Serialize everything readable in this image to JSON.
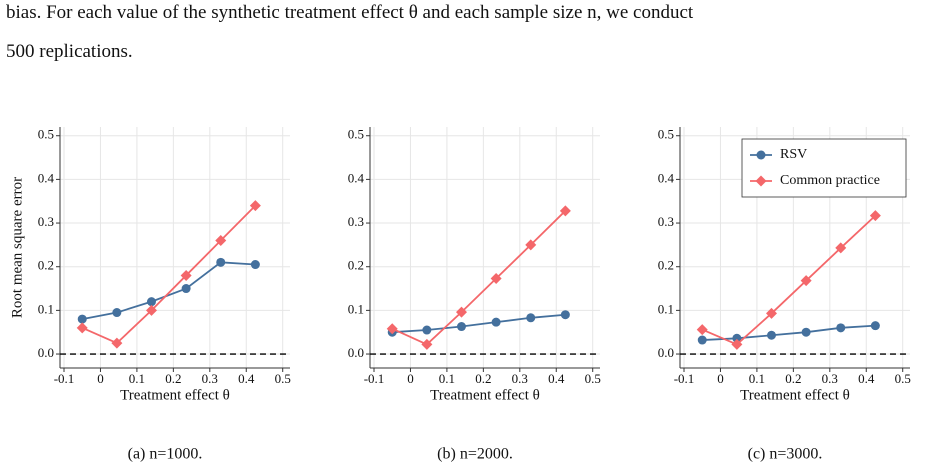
{
  "text": {
    "lines": [
      "bias. For each value of the synthetic treatment effect θ and each sample size n, we conduct",
      "500 replications."
    ]
  },
  "chart_data": [
    {
      "type": "line",
      "caption": "(a) n=1000.",
      "xlabel": "Treatment effect θ",
      "ylabel": "Root mean square error",
      "x": [
        -0.05,
        0.045,
        0.14,
        0.235,
        0.33,
        0.425
      ],
      "series": [
        {
          "color": "#44709d",
          "marker": "circle",
          "values": [
            0.08,
            0.095,
            0.12,
            0.15,
            0.21,
            0.205
          ]
        },
        {
          "color": "#f4676a",
          "marker": "diamond",
          "values": [
            0.06,
            0.025,
            0.1,
            0.18,
            0.26,
            0.34
          ]
        }
      ],
      "xlim": [
        -0.111,
        0.52
      ],
      "ylim": [
        -0.032,
        0.52
      ],
      "xticks": [
        -0.1,
        0,
        0.1,
        0.2,
        0.3,
        0.4,
        0.5
      ],
      "yticks": [
        {
          "value": 0,
          "label": "0.0"
        },
        0.1,
        0.2,
        0.3,
        0.4,
        0.5
      ],
      "hline": 0,
      "grid": true
    },
    {
      "type": "line",
      "caption": "(b) n=2000.",
      "xlabel": "Treatment effect θ",
      "x": [
        -0.05,
        0.045,
        0.14,
        0.235,
        0.33,
        0.425
      ],
      "series": [
        {
          "color": "#44709d",
          "marker": "circle",
          "values": [
            0.05,
            0.055,
            0.063,
            0.073,
            0.083,
            0.09
          ]
        },
        {
          "color": "#f4676a",
          "marker": "diamond",
          "values": [
            0.058,
            0.022,
            0.096,
            0.173,
            0.25,
            0.328
          ]
        }
      ],
      "xlim": [
        -0.111,
        0.52
      ],
      "ylim": [
        -0.032,
        0.52
      ],
      "xticks": [
        -0.1,
        0,
        0.1,
        0.2,
        0.3,
        0.4,
        0.5
      ],
      "yticks": [
        {
          "value": 0,
          "label": "0.0"
        },
        0.1,
        0.2,
        0.3,
        0.4,
        0.5
      ],
      "hline": 0,
      "grid": true
    },
    {
      "type": "line",
      "caption": "(c) n=3000.",
      "xlabel": "Treatment effect θ",
      "x": [
        -0.05,
        0.045,
        0.14,
        0.235,
        0.33,
        0.425
      ],
      "series": [
        {
          "name": "RSV",
          "color": "#44709d",
          "marker": "circle",
          "values": [
            0.032,
            0.036,
            0.043,
            0.05,
            0.06,
            0.065
          ]
        },
        {
          "name": "Common practice",
          "color": "#f4676a",
          "marker": "diamond",
          "values": [
            0.056,
            0.022,
            0.093,
            0.168,
            0.243,
            0.317
          ]
        }
      ],
      "xlim": [
        -0.111,
        0.52
      ],
      "ylim": [
        -0.032,
        0.52
      ],
      "xticks": [
        -0.1,
        0,
        0.1,
        0.2,
        0.3,
        0.4,
        0.5
      ],
      "yticks": [
        {
          "value": 0,
          "label": "0.0"
        },
        0.1,
        0.2,
        0.3,
        0.4,
        0.5
      ],
      "hline": 0,
      "grid": true,
      "legend": "top-right"
    }
  ]
}
